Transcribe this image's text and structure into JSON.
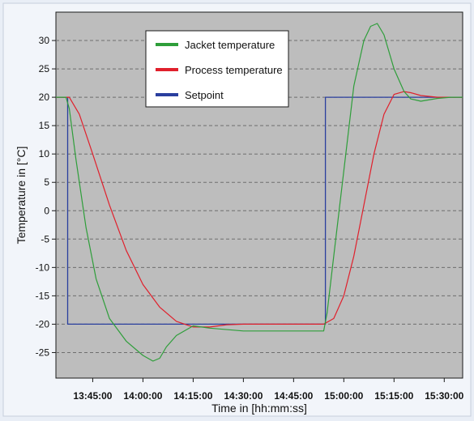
{
  "chart_data": {
    "type": "line",
    "xlabel": "Time in [hh:mm:ss]",
    "ylabel": "Temperature in [°C]",
    "xlim": [
      "13:34:00",
      "15:35:30"
    ],
    "ylim": [
      -29.5,
      35
    ],
    "x_ticks": [
      "13:45:00",
      "14:00:00",
      "14:15:00",
      "14:30:00",
      "14:45:00",
      "15:00:00",
      "15:15:00",
      "15:30:00"
    ],
    "y_ticks": [
      30,
      25,
      20,
      15,
      10,
      5,
      0,
      -5,
      -10,
      -15,
      -20,
      -25
    ],
    "grid": "horizontal dashed",
    "legend_position": "top-center",
    "series": [
      {
        "name": "Jacket temperature",
        "color": "#2e9e3a",
        "x": [
          "13:34:00",
          "13:37:00",
          "13:38:00",
          "13:40:00",
          "13:43:00",
          "13:46:00",
          "13:50:00",
          "13:55:00",
          "14:00:00",
          "14:03:00",
          "14:05:00",
          "14:07:00",
          "14:10:00",
          "14:15:00",
          "14:20:00",
          "14:30:00",
          "14:40:00",
          "14:50:00",
          "14:54:00",
          "14:55:00",
          "14:57:00",
          "15:00:00",
          "15:03:00",
          "15:06:00",
          "15:08:00",
          "15:10:00",
          "15:12:00",
          "15:15:00",
          "15:18:00",
          "15:20:00",
          "15:23:00",
          "15:25:00",
          "15:28:00",
          "15:32:00",
          "15:35:30"
        ],
        "y": [
          20,
          20,
          18,
          9,
          -3,
          -12,
          -19,
          -23,
          -25.5,
          -26.5,
          -26,
          -24,
          -22,
          -20.3,
          -20.7,
          -21.2,
          -21.2,
          -21.2,
          -21.2,
          -18,
          -8,
          7,
          22,
          30,
          32.5,
          33,
          31,
          25,
          21,
          19.7,
          19.3,
          19.5,
          19.8,
          20,
          20
        ]
      },
      {
        "name": "Process temperature",
        "color": "#e0202c",
        "x": [
          "13:34:00",
          "13:38:00",
          "13:41:00",
          "13:45:00",
          "13:50:00",
          "13:55:00",
          "14:00:00",
          "14:05:00",
          "14:10:00",
          "14:15:00",
          "14:20:00",
          "14:25:00",
          "14:30:00",
          "14:40:00",
          "14:50:00",
          "14:54:00",
          "14:57:00",
          "15:00:00",
          "15:03:00",
          "15:06:00",
          "15:09:00",
          "15:12:00",
          "15:15:00",
          "15:18:00",
          "15:20:00",
          "15:23:00",
          "15:28:00",
          "15:35:30"
        ],
        "y": [
          20,
          20,
          17,
          10,
          1,
          -7,
          -13,
          -17,
          -19.5,
          -20.5,
          -20.5,
          -20.1,
          -20,
          -20,
          -20,
          -20,
          -19,
          -15,
          -8,
          1,
          10,
          17,
          20.5,
          21,
          20.8,
          20.3,
          20,
          20
        ]
      },
      {
        "name": "Setpoint",
        "color": "#2a3f9e",
        "x": [
          "13:34:00",
          "13:37:30",
          "13:37:30",
          "14:54:30",
          "14:54:30",
          "15:35:30"
        ],
        "y": [
          20,
          20,
          -20,
          -20,
          20,
          20
        ]
      }
    ]
  }
}
